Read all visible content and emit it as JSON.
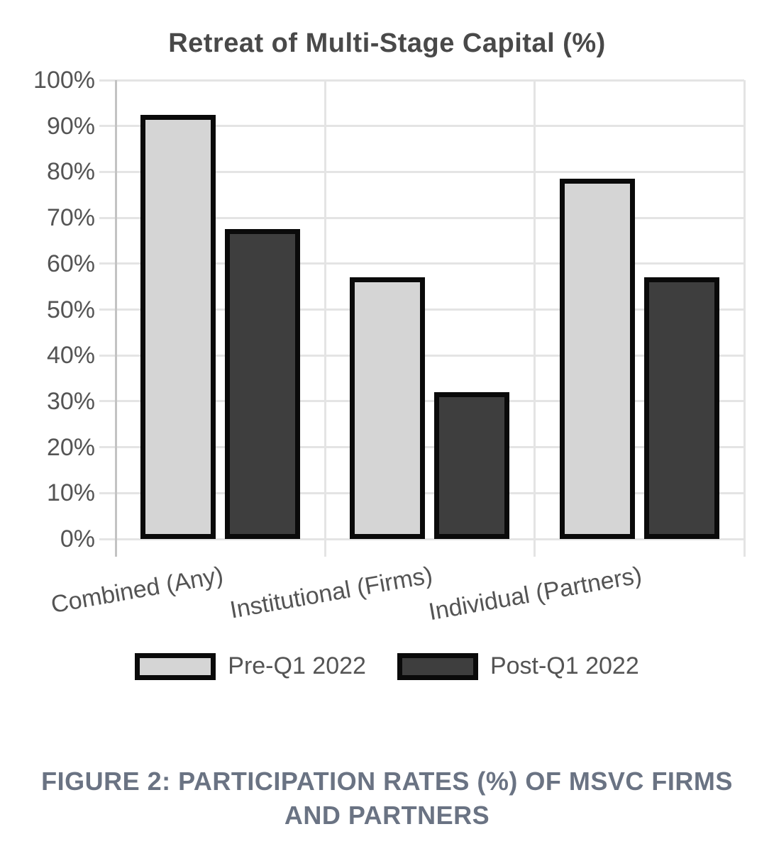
{
  "title": "Retreat of Multi-Stage Capital (%)",
  "caption": "FIGURE 2: PARTICIPATION RATES (%) OF MSVC FIRMS AND PARTNERS",
  "chart_data": {
    "type": "bar",
    "title": "Retreat of Multi-Stage Capital (%)",
    "categories": [
      "Combined (Any)",
      "Institutional (Firms)",
      "Individual (Partners)"
    ],
    "series": [
      {
        "name": "Pre-Q1 2022",
        "color": "#d5d5d5",
        "values": [
          92.5,
          57,
          78.5
        ]
      },
      {
        "name": "Post-Q1 2022",
        "color": "#3e3e3e",
        "values": [
          67.5,
          32,
          57
        ]
      }
    ],
    "bar_border_color": "#0a0a0a",
    "xlabel": "",
    "ylabel": "",
    "ylim": [
      0,
      100
    ],
    "yticks": [
      {
        "label": "0%",
        "value": 0
      },
      {
        "label": "10%",
        "value": 10
      },
      {
        "label": "20%",
        "value": 20
      },
      {
        "label": "30%",
        "value": 30
      },
      {
        "label": "40%",
        "value": 40
      },
      {
        "label": "50%",
        "value": 50
      },
      {
        "label": "60%",
        "value": 60
      },
      {
        "label": "70%",
        "value": 70
      },
      {
        "label": "80%",
        "value": 80
      },
      {
        "label": "90%",
        "value": 90
      },
      {
        "label": "100%",
        "value": 100
      }
    ],
    "grid": true,
    "legend_position": "bottom"
  }
}
